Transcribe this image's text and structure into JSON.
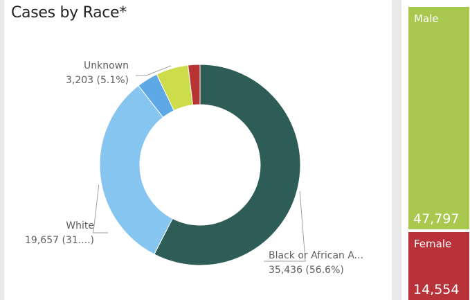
{
  "race_chart": {
    "title": "Cases by Race*"
  },
  "chart_data": [
    {
      "type": "pie",
      "title": "Cases by Race*",
      "donut": true,
      "slices": [
        {
          "label": "Black or African A...",
          "value": 35436,
          "display_value": "35,436 (56.6%)",
          "color": "#2e5c57"
        },
        {
          "label": "White",
          "value": 19657,
          "display_value": "19,657 (31....)",
          "color": "#85c5ef"
        },
        {
          "label": "",
          "value": 2100,
          "display_value": "",
          "color": "#5ea8e6"
        },
        {
          "label": "Unknown",
          "value": 3203,
          "display_value": "3,203 (5.1%)",
          "color": "#cddc4a"
        },
        {
          "label": "",
          "value": 1180,
          "display_value": "",
          "color": "#b83333"
        }
      ]
    },
    {
      "type": "treemap",
      "categories": [
        "Male",
        "Female"
      ],
      "values": [
        47797,
        14554
      ],
      "display_values": [
        "47,797",
        "14,554"
      ],
      "colors": [
        "#a9c84f",
        "#b8323a"
      ]
    }
  ]
}
